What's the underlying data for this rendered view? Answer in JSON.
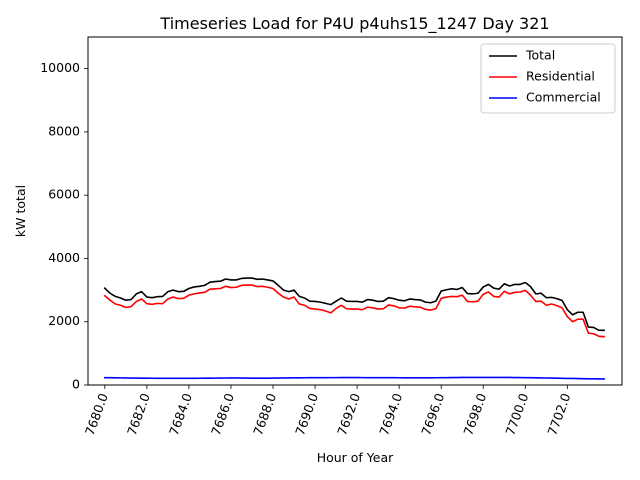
{
  "chart_data": {
    "type": "line",
    "title": "Timeseries Load for P4U p4uhs15_1247  Day 321",
    "xlabel": "Hour of Year",
    "ylabel": "kW total",
    "xlim": [
      7679.2,
      7704.6
    ],
    "ylim": [
      0,
      11000
    ],
    "x_ticks": [
      7680,
      7682,
      7684,
      7686,
      7688,
      7690,
      7692,
      7694,
      7696,
      7698,
      7700,
      7702
    ],
    "x_tick_labels": [
      "7680.0",
      "7682.0",
      "7684.0",
      "7686.0",
      "7688.0",
      "7690.0",
      "7692.0",
      "7694.0",
      "7696.0",
      "7698.0",
      "7700.0",
      "7702.0"
    ],
    "y_ticks": [
      0,
      2000,
      4000,
      6000,
      8000,
      10000
    ],
    "y_tick_labels": [
      "0",
      "2000",
      "4000",
      "6000",
      "8000",
      "10000"
    ],
    "grid": false,
    "legend_position": "top-right",
    "x_start": 7680,
    "x_step": 0.25,
    "series": [
      {
        "name": "Total",
        "color": "#000000",
        "values": [
          3060,
          2900,
          2800,
          2750,
          2680,
          2700,
          2880,
          2950,
          2780,
          2760,
          2790,
          2800,
          2950,
          3000,
          2950,
          2960,
          3050,
          3100,
          3120,
          3150,
          3250,
          3270,
          3280,
          3350,
          3320,
          3320,
          3370,
          3380,
          3380,
          3340,
          3350,
          3320,
          3290,
          3150,
          3000,
          2950,
          3000,
          2800,
          2750,
          2650,
          2640,
          2620,
          2580,
          2540,
          2650,
          2750,
          2650,
          2640,
          2640,
          2620,
          2700,
          2680,
          2640,
          2650,
          2760,
          2730,
          2680,
          2660,
          2720,
          2700,
          2690,
          2620,
          2600,
          2650,
          2970,
          3010,
          3040,
          3020,
          3080,
          2890,
          2880,
          2900,
          3100,
          3180,
          3060,
          3030,
          3200,
          3130,
          3180,
          3180,
          3240,
          3110,
          2880,
          2900,
          2760,
          2770,
          2730,
          2670,
          2380,
          2220,
          2300,
          2300,
          1830,
          1820,
          1730,
          1730
        ]
      },
      {
        "name": "Residential",
        "color": "#ff0000",
        "values": [
          2820,
          2680,
          2560,
          2520,
          2450,
          2480,
          2640,
          2720,
          2570,
          2550,
          2580,
          2570,
          2720,
          2780,
          2730,
          2740,
          2840,
          2880,
          2910,
          2930,
          3030,
          3040,
          3050,
          3120,
          3080,
          3090,
          3150,
          3160,
          3160,
          3110,
          3120,
          3090,
          3050,
          2900,
          2780,
          2720,
          2780,
          2560,
          2520,
          2420,
          2400,
          2380,
          2340,
          2280,
          2420,
          2520,
          2410,
          2400,
          2400,
          2380,
          2460,
          2440,
          2400,
          2410,
          2530,
          2500,
          2440,
          2430,
          2490,
          2470,
          2460,
          2390,
          2370,
          2410,
          2740,
          2780,
          2800,
          2790,
          2840,
          2640,
          2630,
          2650,
          2870,
          2940,
          2800,
          2780,
          2960,
          2880,
          2930,
          2940,
          2990,
          2840,
          2640,
          2650,
          2520,
          2560,
          2510,
          2440,
          2160,
          2000,
          2080,
          2080,
          1640,
          1620,
          1540,
          1530
        ]
      },
      {
        "name": "Commercial",
        "color": "#0000ff",
        "values": [
          230,
          230,
          228,
          225,
          222,
          220,
          218,
          216,
          215,
          213,
          212,
          211,
          210,
          210,
          210,
          210,
          211,
          212,
          213,
          214,
          215,
          217,
          219,
          221,
          222,
          222,
          220,
          218,
          216,
          215,
          215,
          216,
          218,
          220,
          222,
          224,
          226,
          228,
          229,
          230,
          231,
          232,
          232,
          233,
          233,
          234,
          234,
          234,
          234,
          233,
          232,
          231,
          231,
          231,
          231,
          230,
          229,
          228,
          227,
          226,
          226,
          227,
          228,
          229,
          230,
          232,
          234,
          236,
          238,
          239,
          240,
          240,
          240,
          240,
          240,
          240,
          239,
          238,
          236,
          234,
          232,
          230,
          227,
          224,
          221,
          218,
          215,
          212,
          209,
          206,
          203,
          200,
          197,
          195,
          193,
          192
        ]
      }
    ]
  }
}
